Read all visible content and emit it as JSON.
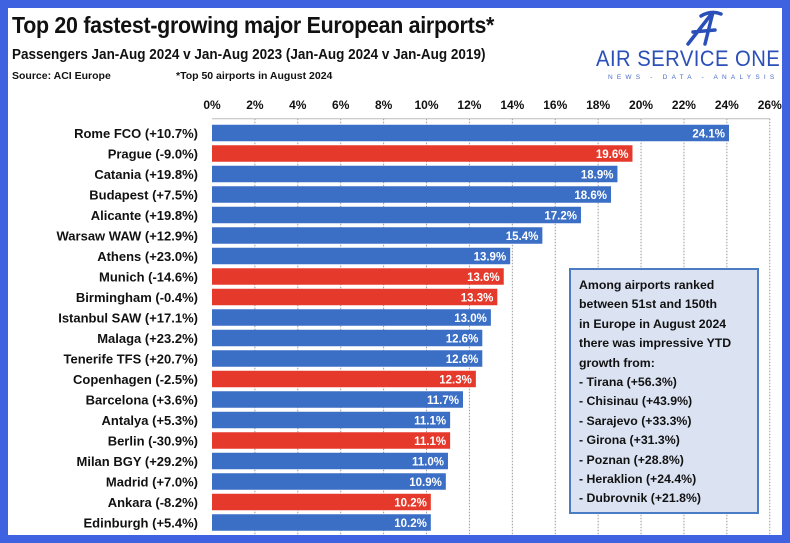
{
  "header": {
    "title": "Top 20 fastest-growing major European airports*",
    "subtitle": "Passengers Jan-Aug 2024 v Jan-Aug 2023 (Jan-Aug 2024 v Jan-Aug 2019)",
    "source": "Source: ACI Europe",
    "footnote": "*Top 50 airports in August 2024"
  },
  "logo": {
    "name": "AIR SERVICE ONE",
    "tagline": "NEWS - DATA - ANALYSIS",
    "color": "#2a4fb8"
  },
  "chart_data": {
    "type": "bar",
    "orientation": "horizontal",
    "xlim": [
      0,
      26
    ],
    "x_ticks": [
      "0%",
      "2%",
      "4%",
      "6%",
      "8%",
      "10%",
      "12%",
      "14%",
      "16%",
      "18%",
      "20%",
      "22%",
      "24%",
      "26%"
    ],
    "axis_position": "top",
    "grid": "vertical dotted",
    "colors": {
      "positive_vs_2019": "#3b6fc5",
      "negative_vs_2019": "#e5392b"
    },
    "categories": [
      "Rome FCO (+10.7%)",
      "Prague (-9.0%)",
      "Catania (+19.8%)",
      "Budapest (+7.5%)",
      "Alicante (+19.8%)",
      "Warsaw WAW (+12.9%)",
      "Athens (+23.0%)",
      "Munich (-14.6%)",
      "Birmingham (-0.4%)",
      "Istanbul SAW (+17.1%)",
      "Malaga (+23.2%)",
      "Tenerife TFS (+20.7%)",
      "Copenhagen (-2.5%)",
      "Barcelona (+3.6%)",
      "Antalya (+5.3%)",
      "Berlin (-30.9%)",
      "Milan BGY (+29.2%)",
      "Madrid (+7.0%)",
      "Ankara (-8.2%)",
      "Edinburgh (+5.4%)"
    ],
    "values": [
      24.1,
      19.6,
      18.9,
      18.6,
      17.2,
      15.4,
      13.9,
      13.6,
      13.3,
      13.0,
      12.6,
      12.6,
      12.3,
      11.7,
      11.1,
      11.1,
      11.0,
      10.9,
      10.2,
      10.2
    ],
    "data_labels": [
      "24.1%",
      "19.6%",
      "18.9%",
      "18.6%",
      "17.2%",
      "15.4%",
      "13.9%",
      "13.6%",
      "13.3%",
      "13.0%",
      "12.6%",
      "12.6%",
      "12.3%",
      "11.7%",
      "11.1%",
      "11.1%",
      "11.0%",
      "10.9%",
      "10.2%",
      "10.2%"
    ],
    "bar_color_keys": [
      "positive_vs_2019",
      "negative_vs_2019",
      "positive_vs_2019",
      "positive_vs_2019",
      "positive_vs_2019",
      "positive_vs_2019",
      "positive_vs_2019",
      "negative_vs_2019",
      "negative_vs_2019",
      "positive_vs_2019",
      "positive_vs_2019",
      "positive_vs_2019",
      "negative_vs_2019",
      "positive_vs_2019",
      "positive_vs_2019",
      "negative_vs_2019",
      "positive_vs_2019",
      "positive_vs_2019",
      "negative_vs_2019",
      "positive_vs_2019"
    ]
  },
  "callout": {
    "lines": [
      "Among airports ranked",
      "between 51st and 150th",
      "in Europe in August 2024",
      "there was impressive YTD",
      "growth from:",
      "- Tirana (+56.3%)",
      "- Chisinau (+43.9%)",
      "- Sarajevo (+33.3%)",
      "- Girona (+31.3%)",
      "- Poznan (+28.8%)",
      "- Heraklion (+24.4%)",
      "- Dubrovnik (+21.8%)"
    ]
  }
}
